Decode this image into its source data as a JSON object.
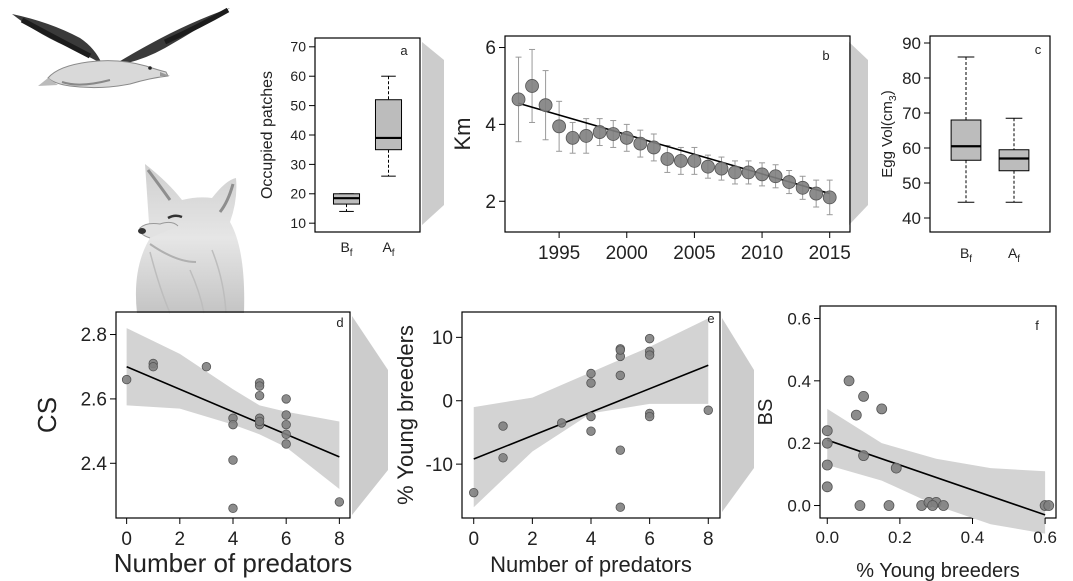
{
  "chart_data": [
    {
      "id": "a",
      "type": "box",
      "panel_label": "a",
      "ylabel": "Occupied patches",
      "yticks": [
        10,
        20,
        30,
        40,
        50,
        60,
        70
      ],
      "ylim": [
        7,
        73
      ],
      "categories": [
        {
          "base": "B",
          "sub": "f"
        },
        {
          "base": "A",
          "sub": "f"
        }
      ],
      "boxes": [
        {
          "min": 14,
          "q1": 16.5,
          "median": 18.5,
          "q3": 20,
          "max": 20
        },
        {
          "min": 26,
          "q1": 35,
          "median": 39,
          "q3": 52,
          "max": 60
        }
      ]
    },
    {
      "id": "b",
      "type": "scatter",
      "panel_label": "b",
      "ylabel": "Km",
      "xticks": [
        1995,
        2000,
        2005,
        2010,
        2015
      ],
      "yticks": [
        2,
        4,
        6
      ],
      "xlim": [
        1991,
        2016.5
      ],
      "ylim": [
        1.2,
        6.3
      ],
      "x": [
        1992,
        1993,
        1994,
        1995,
        1996,
        1997,
        1998,
        1999,
        2000,
        2001,
        2002,
        2003,
        2004,
        2005,
        2006,
        2007,
        2008,
        2009,
        2010,
        2011,
        2012,
        2013,
        2014,
        2015
      ],
      "y": [
        4.65,
        5.0,
        4.5,
        3.95,
        3.65,
        3.7,
        3.8,
        3.75,
        3.65,
        3.5,
        3.4,
        3.1,
        3.05,
        3.05,
        2.9,
        2.85,
        2.75,
        2.75,
        2.7,
        2.65,
        2.5,
        2.35,
        2.2,
        2.1
      ],
      "err": [
        1.1,
        0.95,
        0.9,
        0.65,
        0.4,
        0.45,
        0.35,
        0.35,
        0.35,
        0.35,
        0.35,
        0.35,
        0.35,
        0.35,
        0.3,
        0.3,
        0.3,
        0.3,
        0.3,
        0.3,
        0.3,
        0.3,
        0.35,
        0.45
      ],
      "fit": {
        "x": [
          1992,
          2015
        ],
        "y": [
          4.55,
          2.2
        ]
      }
    },
    {
      "id": "c",
      "type": "box",
      "panel_label": "c",
      "ylabel_base": "Egg Vol(cm",
      "ylabel_sub": "3",
      "ylabel_end": ")",
      "yticks": [
        40,
        50,
        60,
        70,
        80,
        90
      ],
      "ylim": [
        36,
        92
      ],
      "categories": [
        {
          "base": "B",
          "sub": "f"
        },
        {
          "base": "A",
          "sub": "f"
        }
      ],
      "boxes": [
        {
          "min": 44.5,
          "q1": 56.5,
          "median": 60.5,
          "q3": 68,
          "max": 86
        },
        {
          "min": 44.5,
          "q1": 53.5,
          "median": 57,
          "q3": 59.5,
          "max": 68.5
        }
      ]
    },
    {
      "id": "d",
      "type": "scatter",
      "panel_label": "d",
      "xlabel": "Number of predators",
      "ylabel": "CS",
      "xticks": [
        0,
        2,
        4,
        6,
        8
      ],
      "yticks": [
        2.4,
        2.6,
        2.8
      ],
      "xlim": [
        -0.4,
        8.4
      ],
      "ylim": [
        2.23,
        2.87
      ],
      "x": [
        0,
        1,
        1,
        3,
        4,
        4,
        4,
        4,
        5,
        5,
        5,
        5,
        5,
        5,
        6,
        6,
        6,
        6,
        6,
        8
      ],
      "y": [
        2.66,
        2.71,
        2.7,
        2.7,
        2.54,
        2.52,
        2.41,
        2.26,
        2.65,
        2.64,
        2.61,
        2.54,
        2.52,
        2.53,
        2.6,
        2.55,
        2.52,
        2.49,
        2.46,
        2.28
      ],
      "fit": {
        "x": [
          0,
          8
        ],
        "y": [
          2.7,
          2.42
        ]
      },
      "band": {
        "x": [
          0,
          2,
          4,
          5,
          6,
          8
        ],
        "lower": [
          2.58,
          2.57,
          2.52,
          2.49,
          2.45,
          2.32
        ],
        "upper": [
          2.82,
          2.74,
          2.63,
          2.58,
          2.56,
          2.53
        ]
      }
    },
    {
      "id": "e",
      "type": "scatter",
      "panel_label": "e",
      "xlabel": "Number of predators",
      "ylabel": "% Young breeders",
      "xticks": [
        0,
        2,
        4,
        6,
        8
      ],
      "yticks": [
        -10,
        0,
        10
      ],
      "xlim": [
        -0.4,
        8.4
      ],
      "ylim": [
        -18.5,
        14
      ],
      "x": [
        0,
        1,
        1,
        3,
        4,
        4,
        4,
        4,
        5,
        5,
        5,
        5,
        5,
        5,
        6,
        6,
        6,
        6,
        6,
        8
      ],
      "y": [
        -14.5,
        -4.0,
        -9.0,
        -3.5,
        4.3,
        2.8,
        -2.5,
        -4.8,
        8.2,
        7.0,
        4.0,
        -7.8,
        -16.8,
        8.0,
        9.8,
        7.8,
        7.2,
        -2.0,
        -2.5,
        -1.5
      ],
      "fit": {
        "x": [
          0,
          8
        ],
        "y": [
          -9.2,
          5.6
        ]
      },
      "band": {
        "x": [
          0,
          2,
          4,
          6,
          8
        ],
        "lower": [
          -16.8,
          -8.0,
          -2.0,
          -0.5,
          -0.5
        ],
        "upper": [
          -1.0,
          0.5,
          4.5,
          8.5,
          13.0
        ]
      }
    },
    {
      "id": "f",
      "type": "scatter",
      "panel_label": "f",
      "xlabel": "% Young breeders",
      "ylabel": "BS",
      "xticks": [
        0.0,
        0.2,
        0.4,
        0.6
      ],
      "xtick_labels": [
        "0.0",
        "0.2",
        "0.4",
        "0.6"
      ],
      "yticks": [
        0.0,
        0.2,
        0.4,
        0.6
      ],
      "ytick_labels": [
        "0.0",
        "0.2",
        "0.4",
        "0.6"
      ],
      "xlim": [
        -0.02,
        0.63
      ],
      "ylim": [
        -0.04,
        0.64
      ],
      "x": [
        0.0,
        0.0,
        0.0,
        0.0,
        0.06,
        0.1,
        0.1,
        0.08,
        0.15,
        0.09,
        0.19,
        0.17,
        0.26,
        0.28,
        0.3,
        0.29,
        0.32,
        0.6,
        0.61
      ],
      "y": [
        0.24,
        0.13,
        0.06,
        0.2,
        0.4,
        0.35,
        0.16,
        0.29,
        0.31,
        0.0,
        0.12,
        0.0,
        0.0,
        0.01,
        0.01,
        0.0,
        0.0,
        0.0,
        0.0
      ],
      "fit": {
        "x": [
          0.0,
          0.6
        ],
        "y": [
          0.21,
          -0.03
        ]
      },
      "band": {
        "x": [
          0.0,
          0.15,
          0.3,
          0.45,
          0.6
        ],
        "lower": [
          0.13,
          0.08,
          0.0,
          -0.06,
          -0.09
        ],
        "upper": [
          0.31,
          0.2,
          0.15,
          0.12,
          0.11
        ]
      }
    }
  ],
  "colors": {
    "point": "#7f7f7f",
    "point_stroke": "#555555",
    "box_fill": "#bcbcbc",
    "band": "#d3d3d3",
    "arrow": "#cccccc",
    "axis": "#000000",
    "text": "#222222"
  },
  "illustrations": [
    "seagull-illustration",
    "fox-illustration"
  ]
}
